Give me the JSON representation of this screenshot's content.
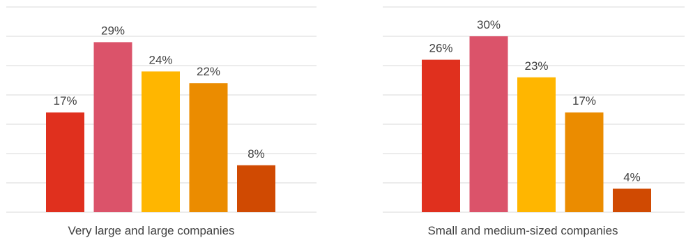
{
  "chart_data": [
    {
      "type": "bar",
      "categories": [
        "",
        "",
        "",
        "",
        ""
      ],
      "values": [
        17,
        29,
        24,
        22,
        8
      ],
      "value_format": "{v}%",
      "colors": [
        "#e0301e",
        "#db536a",
        "#ffb600",
        "#eb8c00",
        "#d04a02"
      ],
      "title": "",
      "xlabel": "Very large and large companies",
      "ylabel": "",
      "ylim": [
        0,
        35
      ],
      "grid": true,
      "legend": "none"
    },
    {
      "type": "bar",
      "categories": [
        "",
        "",
        "",
        "",
        ""
      ],
      "values": [
        26,
        30,
        23,
        17,
        4
      ],
      "value_format": "{v}%",
      "colors": [
        "#e0301e",
        "#db536a",
        "#ffb600",
        "#eb8c00",
        "#d04a02"
      ],
      "title": "",
      "xlabel": "Small and medium-sized companies",
      "ylabel": "",
      "ylim": [
        0,
        35
      ],
      "grid": true,
      "legend": "none"
    }
  ]
}
